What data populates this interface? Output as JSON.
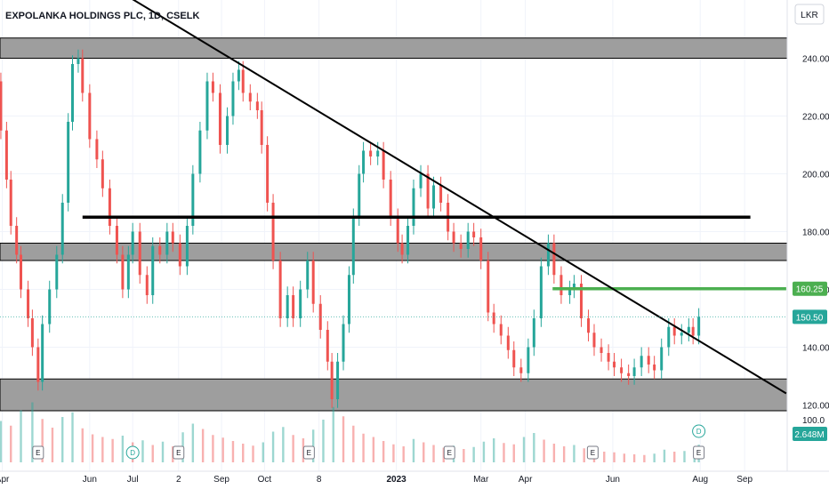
{
  "chart_data": {
    "type": "candlestick",
    "title": "EXPOLANKA HOLDINGS PLC, 1D, CSELK",
    "currency": "LKR",
    "ylim": [
      114,
      254
    ],
    "y_ticks": [
      120,
      140,
      160,
      180,
      200,
      220,
      240
    ],
    "y_tick_labels": [
      "120.00",
      "140.00",
      "160.00",
      "180.00",
      "200.00",
      "220.00",
      "240.00"
    ],
    "x_ticks": [
      {
        "label": "Apr",
        "date": "2022-04-01"
      },
      {
        "label": "Jun",
        "date": "2022-06-01"
      },
      {
        "label": "Jul",
        "date": "2022-07-01"
      },
      {
        "label": "2",
        "date": "2022-08-02"
      },
      {
        "label": "Sep",
        "date": "2022-09-01"
      },
      {
        "label": "Oct",
        "date": "2022-10-01"
      },
      {
        "label": "8",
        "date": "2022-11-08"
      },
      {
        "label": "2023",
        "date": "2023-01-01"
      },
      {
        "label": "Mar",
        "date": "2023-03-01"
      },
      {
        "label": "Apr",
        "date": "2023-04-01"
      },
      {
        "label": "Jun",
        "date": "2023-06-01"
      },
      {
        "label": "Aug",
        "date": "2023-08-01"
      },
      {
        "label": "Sep",
        "date": "2023-09-01"
      }
    ],
    "close_series": [
      [
        "2022-03-24",
        245
      ],
      [
        "2022-03-28",
        232
      ],
      [
        "2022-03-31",
        215
      ],
      [
        "2022-04-04",
        198
      ],
      [
        "2022-04-07",
        182
      ],
      [
        "2022-04-11",
        172
      ],
      [
        "2022-04-14",
        160
      ],
      [
        "2022-04-19",
        150
      ],
      [
        "2022-04-22",
        140
      ],
      [
        "2022-04-26",
        128
      ],
      [
        "2022-04-29",
        148
      ],
      [
        "2022-05-04",
        160
      ],
      [
        "2022-05-09",
        172
      ],
      [
        "2022-05-13",
        190
      ],
      [
        "2022-05-17",
        218
      ],
      [
        "2022-05-20",
        238
      ],
      [
        "2022-05-24",
        240
      ],
      [
        "2022-05-27",
        228
      ],
      [
        "2022-06-01",
        212
      ],
      [
        "2022-06-06",
        205
      ],
      [
        "2022-06-10",
        195
      ],
      [
        "2022-06-15",
        182
      ],
      [
        "2022-06-20",
        172
      ],
      [
        "2022-06-24",
        160
      ],
      [
        "2022-06-28",
        172
      ],
      [
        "2022-07-01",
        180
      ],
      [
        "2022-07-06",
        165
      ],
      [
        "2022-07-11",
        158
      ],
      [
        "2022-07-15",
        175
      ],
      [
        "2022-07-20",
        172
      ],
      [
        "2022-07-25",
        180
      ],
      [
        "2022-07-29",
        176
      ],
      [
        "2022-08-03",
        168
      ],
      [
        "2022-08-08",
        182
      ],
      [
        "2022-08-12",
        200
      ],
      [
        "2022-08-17",
        215
      ],
      [
        "2022-08-22",
        232
      ],
      [
        "2022-08-26",
        228
      ],
      [
        "2022-08-31",
        210
      ],
      [
        "2022-09-05",
        220
      ],
      [
        "2022-09-09",
        232
      ],
      [
        "2022-09-13",
        236
      ],
      [
        "2022-09-16",
        228
      ],
      [
        "2022-09-21",
        225
      ],
      [
        "2022-09-26",
        222
      ],
      [
        "2022-09-29",
        210
      ],
      [
        "2022-10-03",
        190
      ],
      [
        "2022-10-07",
        170
      ],
      [
        "2022-10-12",
        150
      ],
      [
        "2022-10-17",
        158
      ],
      [
        "2022-10-21",
        150
      ],
      [
        "2022-10-26",
        160
      ],
      [
        "2022-10-31",
        170
      ],
      [
        "2022-11-04",
        155
      ],
      [
        "2022-11-09",
        146
      ],
      [
        "2022-11-14",
        135
      ],
      [
        "2022-11-17",
        122
      ],
      [
        "2022-11-21",
        135
      ],
      [
        "2022-11-25",
        148
      ],
      [
        "2022-11-29",
        165
      ],
      [
        "2022-12-02",
        185
      ],
      [
        "2022-12-06",
        200
      ],
      [
        "2022-12-09",
        208
      ],
      [
        "2022-12-14",
        206
      ],
      [
        "2022-12-19",
        208
      ],
      [
        "2022-12-23",
        198
      ],
      [
        "2022-12-28",
        185
      ],
      [
        "2023-01-02",
        176
      ],
      [
        "2023-01-05",
        172
      ],
      [
        "2023-01-09",
        182
      ],
      [
        "2023-01-13",
        195
      ],
      [
        "2023-01-18",
        200
      ],
      [
        "2023-01-23",
        188
      ],
      [
        "2023-01-27",
        196
      ],
      [
        "2023-02-01",
        190
      ],
      [
        "2023-02-06",
        180
      ],
      [
        "2023-02-10",
        176
      ],
      [
        "2023-02-15",
        174
      ],
      [
        "2023-02-20",
        180
      ],
      [
        "2023-02-24",
        178
      ],
      [
        "2023-03-01",
        170
      ],
      [
        "2023-03-06",
        152
      ],
      [
        "2023-03-10",
        148
      ],
      [
        "2023-03-15",
        144
      ],
      [
        "2023-03-20",
        139
      ],
      [
        "2023-03-24",
        133
      ],
      [
        "2023-03-29",
        131
      ],
      [
        "2023-04-03",
        140
      ],
      [
        "2023-04-07",
        150
      ],
      [
        "2023-04-12",
        168
      ],
      [
        "2023-04-17",
        176
      ],
      [
        "2023-04-21",
        165
      ],
      [
        "2023-04-26",
        158
      ],
      [
        "2023-05-02",
        160
      ],
      [
        "2023-05-05",
        162
      ],
      [
        "2023-05-10",
        150
      ],
      [
        "2023-05-15",
        145
      ],
      [
        "2023-05-19",
        140
      ],
      [
        "2023-05-24",
        138
      ],
      [
        "2023-05-29",
        135
      ],
      [
        "2023-06-02",
        133
      ],
      [
        "2023-06-07",
        131
      ],
      [
        "2023-06-12",
        130
      ],
      [
        "2023-06-16",
        133
      ],
      [
        "2023-06-21",
        137
      ],
      [
        "2023-06-26",
        134
      ],
      [
        "2023-06-30",
        132
      ],
      [
        "2023-07-05",
        140
      ],
      [
        "2023-07-10",
        147
      ],
      [
        "2023-07-14",
        144
      ],
      [
        "2023-07-19",
        145
      ],
      [
        "2023-07-24",
        147
      ],
      [
        "2023-07-27",
        144
      ],
      [
        "2023-07-31",
        150.5
      ]
    ],
    "volume_series": [
      [
        "2022-03-24",
        4.8
      ],
      [
        "2022-03-31",
        6.2
      ],
      [
        "2022-04-07",
        5.5
      ],
      [
        "2022-04-14",
        7.8
      ],
      [
        "2022-04-22",
        9.0
      ],
      [
        "2022-04-29",
        6.5
      ],
      [
        "2022-05-06",
        5.2
      ],
      [
        "2022-05-13",
        6.8
      ],
      [
        "2022-05-20",
        7.5
      ],
      [
        "2022-05-27",
        5.1
      ],
      [
        "2022-06-03",
        4.2
      ],
      [
        "2022-06-10",
        3.8
      ],
      [
        "2022-06-17",
        3.5
      ],
      [
        "2022-06-24",
        4.0
      ],
      [
        "2022-07-01",
        3.0
      ],
      [
        "2022-07-08",
        3.3
      ],
      [
        "2022-07-15",
        2.6
      ],
      [
        "2022-07-22",
        3.1
      ],
      [
        "2022-07-29",
        2.4
      ],
      [
        "2022-08-05",
        4.5
      ],
      [
        "2022-08-12",
        5.8
      ],
      [
        "2022-08-19",
        5.0
      ],
      [
        "2022-08-26",
        4.1
      ],
      [
        "2022-09-02",
        3.7
      ],
      [
        "2022-09-09",
        3.2
      ],
      [
        "2022-09-16",
        2.8
      ],
      [
        "2022-09-23",
        2.5
      ],
      [
        "2022-09-30",
        3.0
      ],
      [
        "2022-10-07",
        4.6
      ],
      [
        "2022-10-14",
        5.3
      ],
      [
        "2022-10-21",
        4.1
      ],
      [
        "2022-10-28",
        3.6
      ],
      [
        "2022-11-04",
        4.9
      ],
      [
        "2022-11-11",
        6.4
      ],
      [
        "2022-11-18",
        8.3
      ],
      [
        "2022-11-25",
        6.9
      ],
      [
        "2022-12-02",
        5.5
      ],
      [
        "2022-12-09",
        4.3
      ],
      [
        "2022-12-16",
        3.8
      ],
      [
        "2022-12-23",
        3.2
      ],
      [
        "2022-12-30",
        2.7
      ],
      [
        "2023-01-06",
        2.4
      ],
      [
        "2023-01-13",
        3.5
      ],
      [
        "2023-01-20",
        3.0
      ],
      [
        "2023-01-27",
        2.6
      ],
      [
        "2023-02-03",
        2.2
      ],
      [
        "2023-02-10",
        2.5
      ],
      [
        "2023-02-17",
        2.0
      ],
      [
        "2023-02-24",
        2.3
      ],
      [
        "2023-03-03",
        3.1
      ],
      [
        "2023-03-10",
        3.6
      ],
      [
        "2023-03-17",
        2.9
      ],
      [
        "2023-03-24",
        2.7
      ],
      [
        "2023-03-31",
        3.8
      ],
      [
        "2023-04-07",
        4.4
      ],
      [
        "2023-04-14",
        3.4
      ],
      [
        "2023-04-21",
        2.8
      ],
      [
        "2023-04-28",
        2.4
      ],
      [
        "2023-05-05",
        2.6
      ],
      [
        "2023-05-12",
        2.1
      ],
      [
        "2023-05-19",
        1.8
      ],
      [
        "2023-05-26",
        1.6
      ],
      [
        "2023-06-02",
        1.5
      ],
      [
        "2023-06-09",
        1.3
      ],
      [
        "2023-06-16",
        1.2
      ],
      [
        "2023-06-23",
        1.1
      ],
      [
        "2023-06-30",
        1.3
      ],
      [
        "2023-07-07",
        1.9
      ],
      [
        "2023-07-14",
        1.6
      ],
      [
        "2023-07-21",
        1.7
      ],
      [
        "2023-07-28",
        2.3
      ],
      [
        "2023-07-31",
        2.648
      ]
    ],
    "volume_ylim": [
      0,
      10
    ],
    "volume_tick_label": "100.0",
    "last_volume_label": "2.648M",
    "horizontal_zones": [
      {
        "from": 240,
        "to": 247
      },
      {
        "from": 170,
        "to": 176
      },
      {
        "from": 118,
        "to": 129
      }
    ],
    "horizontal_lines": [
      {
        "value": 185,
        "start": "2022-05-27",
        "end": "2023-09-05",
        "color": "#000000"
      },
      {
        "value": 160.25,
        "start": "2023-04-20",
        "end": "2023-09-30",
        "color": "#4caf50"
      }
    ],
    "trendline": {
      "start": [
        "2022-03-24",
        290
      ],
      "end": [
        "2023-09-30",
        124
      ],
      "color": "#000000"
    },
    "price_labels": [
      {
        "value": 160.25,
        "text": "160.25",
        "color": "#4caf50"
      },
      {
        "value": 150.5,
        "text": "150.50",
        "color": "#26a69a"
      }
    ],
    "event_markers": [
      {
        "date": "2022-04-26",
        "letter": "E",
        "kind": "earnings"
      },
      {
        "date": "2022-07-01",
        "letter": "D",
        "kind": "dividend"
      },
      {
        "date": "2022-08-02",
        "letter": "E",
        "kind": "earnings"
      },
      {
        "date": "2022-11-01",
        "letter": "E",
        "kind": "earnings"
      },
      {
        "date": "2023-02-07",
        "letter": "E",
        "kind": "earnings"
      },
      {
        "date": "2023-05-18",
        "letter": "E",
        "kind": "earnings"
      },
      {
        "date": "2023-07-31",
        "letter": "E",
        "kind": "earnings"
      },
      {
        "date": "2023-07-31",
        "letter": "D",
        "kind": "dividend"
      }
    ],
    "colors": {
      "up": "#26a69a",
      "down": "#ef5350",
      "zone": "#9e9e9e",
      "grid": "#f0f3fa"
    }
  }
}
